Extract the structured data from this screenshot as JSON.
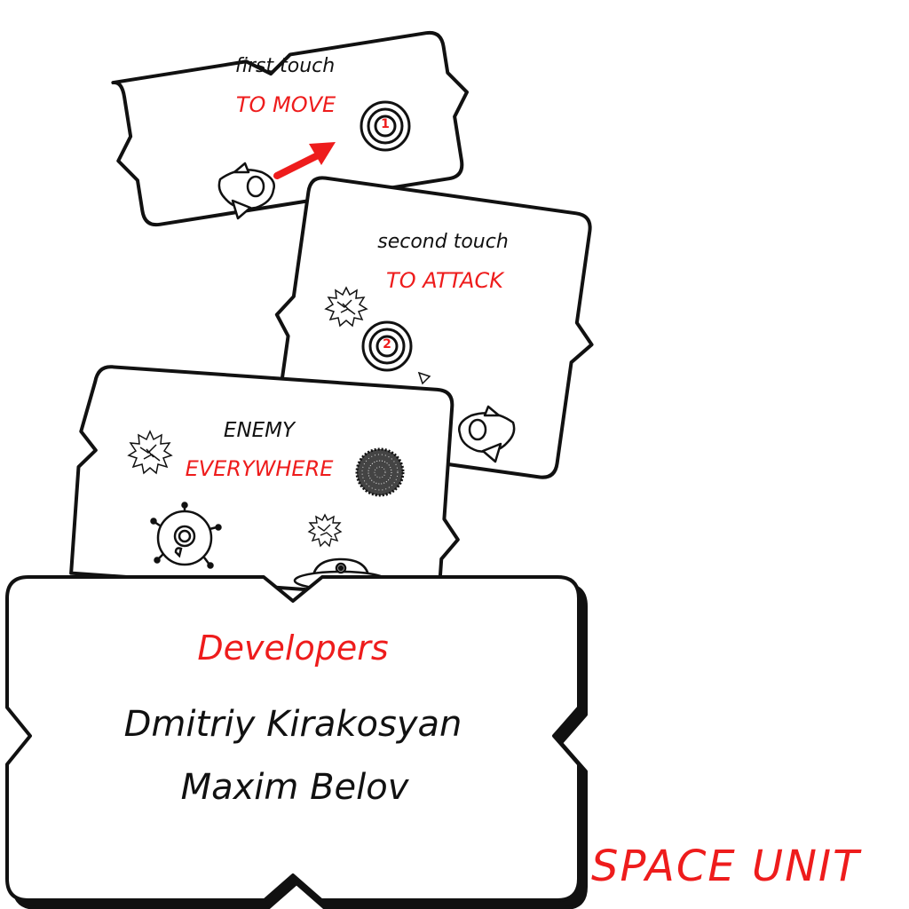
{
  "colors": {
    "accent": "#ee1c1c",
    "ink": "#111111",
    "paper": "#ffffff"
  },
  "tutorial": {
    "move": {
      "line1": "first touch",
      "line2": "TO MOVE",
      "target_number": "1"
    },
    "attack": {
      "line1": "second touch",
      "line2": "TO ATTACK",
      "target_number": "2"
    },
    "enemy": {
      "line1": "ENEMY",
      "line2": "EVERYWHERE"
    }
  },
  "credits": {
    "heading": "Developers",
    "names": [
      "Dmitriy Kirakosyan",
      "Maxim Belov"
    ]
  },
  "brand": {
    "title": "SPACE UNIT"
  },
  "icons": [
    "spaceship-icon",
    "target-icon",
    "arrow-icon",
    "spiky-virus-icon",
    "mine-icon",
    "ufo-icon"
  ]
}
